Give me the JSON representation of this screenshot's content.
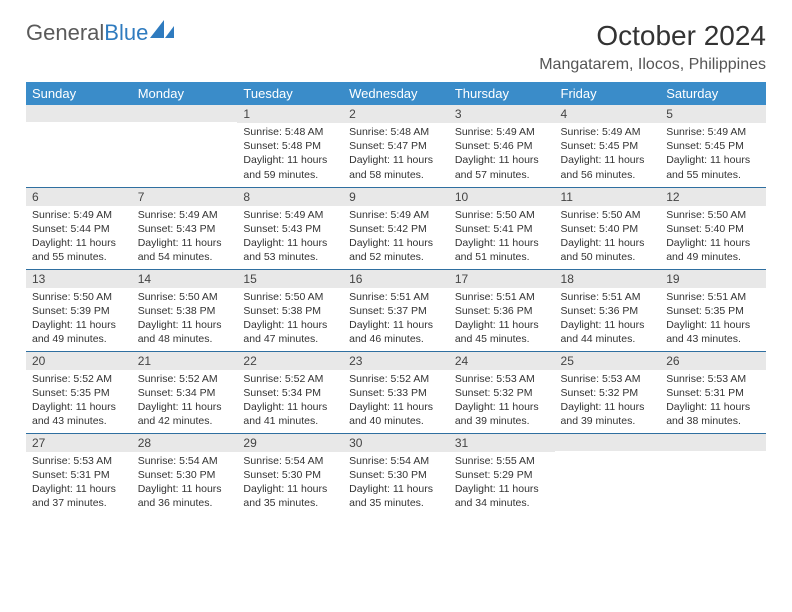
{
  "brand": {
    "part1": "General",
    "part2": "Blue"
  },
  "title": "October 2024",
  "location": "Mangatarem, Ilocos, Philippines",
  "colors": {
    "header_bg": "#3a8cc9",
    "header_text": "#ffffff",
    "daynum_bg": "#e8e8e8",
    "row_border": "#2f6fa0",
    "brand_gray": "#5a5a5a",
    "brand_blue": "#2f7bbf"
  },
  "day_names": [
    "Sunday",
    "Monday",
    "Tuesday",
    "Wednesday",
    "Thursday",
    "Friday",
    "Saturday"
  ],
  "weeks": [
    [
      {
        "n": "",
        "sr": "",
        "ss": "",
        "dl": ""
      },
      {
        "n": "",
        "sr": "",
        "ss": "",
        "dl": ""
      },
      {
        "n": "1",
        "sr": "Sunrise: 5:48 AM",
        "ss": "Sunset: 5:48 PM",
        "dl": "Daylight: 11 hours and 59 minutes."
      },
      {
        "n": "2",
        "sr": "Sunrise: 5:48 AM",
        "ss": "Sunset: 5:47 PM",
        "dl": "Daylight: 11 hours and 58 minutes."
      },
      {
        "n": "3",
        "sr": "Sunrise: 5:49 AM",
        "ss": "Sunset: 5:46 PM",
        "dl": "Daylight: 11 hours and 57 minutes."
      },
      {
        "n": "4",
        "sr": "Sunrise: 5:49 AM",
        "ss": "Sunset: 5:45 PM",
        "dl": "Daylight: 11 hours and 56 minutes."
      },
      {
        "n": "5",
        "sr": "Sunrise: 5:49 AM",
        "ss": "Sunset: 5:45 PM",
        "dl": "Daylight: 11 hours and 55 minutes."
      }
    ],
    [
      {
        "n": "6",
        "sr": "Sunrise: 5:49 AM",
        "ss": "Sunset: 5:44 PM",
        "dl": "Daylight: 11 hours and 55 minutes."
      },
      {
        "n": "7",
        "sr": "Sunrise: 5:49 AM",
        "ss": "Sunset: 5:43 PM",
        "dl": "Daylight: 11 hours and 54 minutes."
      },
      {
        "n": "8",
        "sr": "Sunrise: 5:49 AM",
        "ss": "Sunset: 5:43 PM",
        "dl": "Daylight: 11 hours and 53 minutes."
      },
      {
        "n": "9",
        "sr": "Sunrise: 5:49 AM",
        "ss": "Sunset: 5:42 PM",
        "dl": "Daylight: 11 hours and 52 minutes."
      },
      {
        "n": "10",
        "sr": "Sunrise: 5:50 AM",
        "ss": "Sunset: 5:41 PM",
        "dl": "Daylight: 11 hours and 51 minutes."
      },
      {
        "n": "11",
        "sr": "Sunrise: 5:50 AM",
        "ss": "Sunset: 5:40 PM",
        "dl": "Daylight: 11 hours and 50 minutes."
      },
      {
        "n": "12",
        "sr": "Sunrise: 5:50 AM",
        "ss": "Sunset: 5:40 PM",
        "dl": "Daylight: 11 hours and 49 minutes."
      }
    ],
    [
      {
        "n": "13",
        "sr": "Sunrise: 5:50 AM",
        "ss": "Sunset: 5:39 PM",
        "dl": "Daylight: 11 hours and 49 minutes."
      },
      {
        "n": "14",
        "sr": "Sunrise: 5:50 AM",
        "ss": "Sunset: 5:38 PM",
        "dl": "Daylight: 11 hours and 48 minutes."
      },
      {
        "n": "15",
        "sr": "Sunrise: 5:50 AM",
        "ss": "Sunset: 5:38 PM",
        "dl": "Daylight: 11 hours and 47 minutes."
      },
      {
        "n": "16",
        "sr": "Sunrise: 5:51 AM",
        "ss": "Sunset: 5:37 PM",
        "dl": "Daylight: 11 hours and 46 minutes."
      },
      {
        "n": "17",
        "sr": "Sunrise: 5:51 AM",
        "ss": "Sunset: 5:36 PM",
        "dl": "Daylight: 11 hours and 45 minutes."
      },
      {
        "n": "18",
        "sr": "Sunrise: 5:51 AM",
        "ss": "Sunset: 5:36 PM",
        "dl": "Daylight: 11 hours and 44 minutes."
      },
      {
        "n": "19",
        "sr": "Sunrise: 5:51 AM",
        "ss": "Sunset: 5:35 PM",
        "dl": "Daylight: 11 hours and 43 minutes."
      }
    ],
    [
      {
        "n": "20",
        "sr": "Sunrise: 5:52 AM",
        "ss": "Sunset: 5:35 PM",
        "dl": "Daylight: 11 hours and 43 minutes."
      },
      {
        "n": "21",
        "sr": "Sunrise: 5:52 AM",
        "ss": "Sunset: 5:34 PM",
        "dl": "Daylight: 11 hours and 42 minutes."
      },
      {
        "n": "22",
        "sr": "Sunrise: 5:52 AM",
        "ss": "Sunset: 5:34 PM",
        "dl": "Daylight: 11 hours and 41 minutes."
      },
      {
        "n": "23",
        "sr": "Sunrise: 5:52 AM",
        "ss": "Sunset: 5:33 PM",
        "dl": "Daylight: 11 hours and 40 minutes."
      },
      {
        "n": "24",
        "sr": "Sunrise: 5:53 AM",
        "ss": "Sunset: 5:32 PM",
        "dl": "Daylight: 11 hours and 39 minutes."
      },
      {
        "n": "25",
        "sr": "Sunrise: 5:53 AM",
        "ss": "Sunset: 5:32 PM",
        "dl": "Daylight: 11 hours and 39 minutes."
      },
      {
        "n": "26",
        "sr": "Sunrise: 5:53 AM",
        "ss": "Sunset: 5:31 PM",
        "dl": "Daylight: 11 hours and 38 minutes."
      }
    ],
    [
      {
        "n": "27",
        "sr": "Sunrise: 5:53 AM",
        "ss": "Sunset: 5:31 PM",
        "dl": "Daylight: 11 hours and 37 minutes."
      },
      {
        "n": "28",
        "sr": "Sunrise: 5:54 AM",
        "ss": "Sunset: 5:30 PM",
        "dl": "Daylight: 11 hours and 36 minutes."
      },
      {
        "n": "29",
        "sr": "Sunrise: 5:54 AM",
        "ss": "Sunset: 5:30 PM",
        "dl": "Daylight: 11 hours and 35 minutes."
      },
      {
        "n": "30",
        "sr": "Sunrise: 5:54 AM",
        "ss": "Sunset: 5:30 PM",
        "dl": "Daylight: 11 hours and 35 minutes."
      },
      {
        "n": "31",
        "sr": "Sunrise: 5:55 AM",
        "ss": "Sunset: 5:29 PM",
        "dl": "Daylight: 11 hours and 34 minutes."
      },
      {
        "n": "",
        "sr": "",
        "ss": "",
        "dl": ""
      },
      {
        "n": "",
        "sr": "",
        "ss": "",
        "dl": ""
      }
    ]
  ]
}
